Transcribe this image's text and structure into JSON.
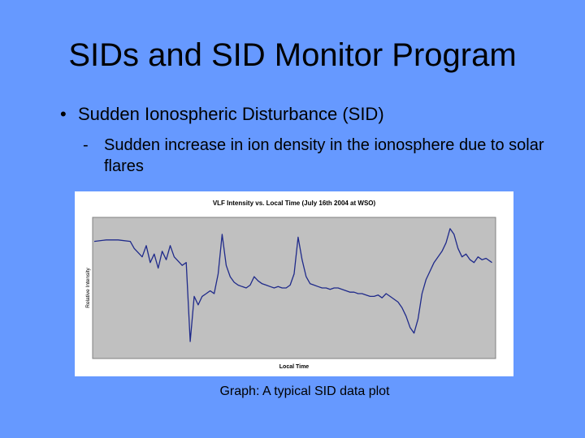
{
  "slide": {
    "title": "SIDs and SID Monitor Program",
    "bullet": "Sudden Ionospheric Disturbance (SID)",
    "sub_bullet": "Sudden increase in ion density in the ionosphere due to solar flares",
    "caption": "Graph: A typical SID data plot",
    "background": "#6699ff"
  },
  "chart_data": {
    "type": "line",
    "title": "VLF Intensity vs. Local Time (July 16th 2004 at WSO)",
    "xlabel": "Local Time",
    "ylabel": "Relative Intensity",
    "xlim": [
      0,
      100
    ],
    "ylim": [
      0,
      100
    ],
    "grid": false,
    "plot_background": "#c0c0c0",
    "line_color": "#1f2a8a",
    "series": [
      {
        "x": [
          0,
          3,
          6,
          9,
          10,
          12,
          13,
          14,
          15,
          16,
          17,
          18,
          19,
          20,
          21,
          22,
          23,
          24,
          25,
          26,
          27,
          28,
          29,
          29.5,
          30,
          31,
          32,
          33,
          34,
          35,
          36,
          37,
          38,
          39,
          40,
          41,
          42,
          43,
          44,
          45,
          46,
          47,
          48,
          49,
          50,
          51,
          52,
          53,
          54,
          55,
          56,
          57,
          58,
          59,
          60,
          61,
          62,
          63,
          64,
          65,
          66,
          67,
          68,
          69,
          70,
          71,
          72,
          73,
          74,
          75,
          76,
          77,
          78,
          79,
          80,
          81,
          82,
          83,
          84,
          85,
          86,
          87,
          88,
          89,
          90,
          91,
          92,
          93,
          94,
          95,
          96,
          97,
          98,
          99.5
        ],
        "y": [
          83,
          84,
          84,
          83,
          78,
          72,
          80,
          68,
          74,
          64,
          76,
          70,
          80,
          72,
          69,
          66,
          68,
          12,
          44,
          38,
          44,
          46,
          48,
          47,
          46,
          60,
          88,
          66,
          58,
          54,
          52,
          51,
          50,
          52,
          58,
          55,
          53,
          52,
          51,
          50,
          51,
          50,
          50,
          52,
          60,
          86,
          70,
          58,
          53,
          52,
          51,
          50,
          50,
          49,
          50,
          50,
          49,
          48,
          47,
          47,
          46,
          46,
          45,
          44,
          44,
          45,
          43,
          46,
          44,
          42,
          40,
          36,
          30,
          22,
          18,
          28,
          46,
          56,
          62,
          68,
          72,
          76,
          82,
          92,
          88,
          78,
          72,
          74,
          70,
          68,
          72,
          70,
          71,
          68
        ]
      }
    ]
  }
}
